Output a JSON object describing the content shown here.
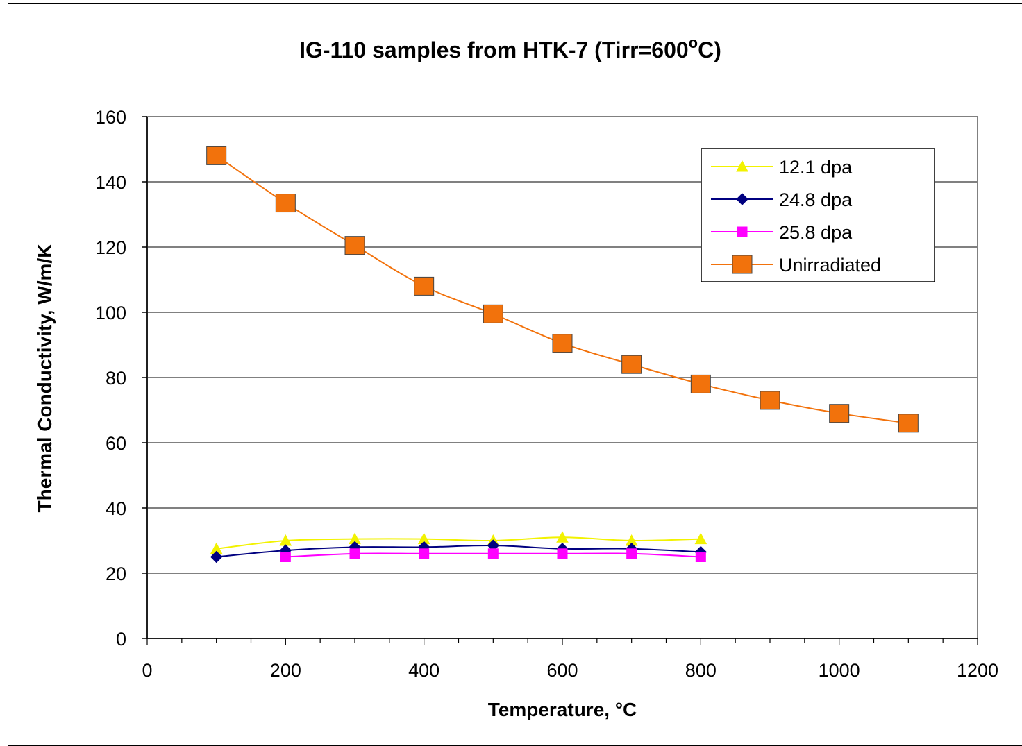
{
  "chart_data": {
    "type": "line",
    "title": "IG-110 samples from HTK-7 (Tirr=600",
    "title_degree": "o",
    "title_end": "C)",
    "xlabel": "Temperature, °C",
    "ylabel": "Thermal Conductivity, W/m/K",
    "xlim": [
      0,
      1200
    ],
    "ylim": [
      0,
      160
    ],
    "xticks": [
      "0",
      "200",
      "400",
      "600",
      "800",
      "1000",
      "1200"
    ],
    "yticks": [
      "0",
      "20",
      "40",
      "60",
      "80",
      "100",
      "120",
      "140",
      "160"
    ],
    "grid": "horizontal",
    "legend_position": "top-right",
    "series": [
      {
        "name": "12.1 dpa",
        "color": "#f2f200",
        "marker": "triangle",
        "x": [
          100,
          200,
          300,
          400,
          500,
          600,
          700,
          800
        ],
        "y": [
          27.5,
          30,
          30.5,
          30.5,
          30,
          31,
          30,
          30.5
        ]
      },
      {
        "name": "24.8 dpa",
        "color": "#000080",
        "marker": "diamond",
        "x": [
          100,
          200,
          300,
          400,
          500,
          600,
          700,
          800
        ],
        "y": [
          25,
          27,
          28,
          28,
          28.5,
          27.5,
          27.5,
          26.5
        ]
      },
      {
        "name": "25.8 dpa",
        "color": "#ff00ff",
        "marker": "square",
        "x": [
          200,
          300,
          400,
          500,
          600,
          700,
          800
        ],
        "y": [
          25,
          26,
          26,
          26,
          26,
          26,
          25
        ]
      },
      {
        "name": "Unirradiated",
        "color": "#f2720c",
        "marker": "square-large",
        "x": [
          100,
          200,
          300,
          400,
          500,
          600,
          700,
          800,
          900,
          1000,
          1100
        ],
        "y": [
          148,
          133.5,
          120.5,
          108,
          99.5,
          90.5,
          84,
          78,
          73,
          69,
          66
        ]
      }
    ]
  }
}
